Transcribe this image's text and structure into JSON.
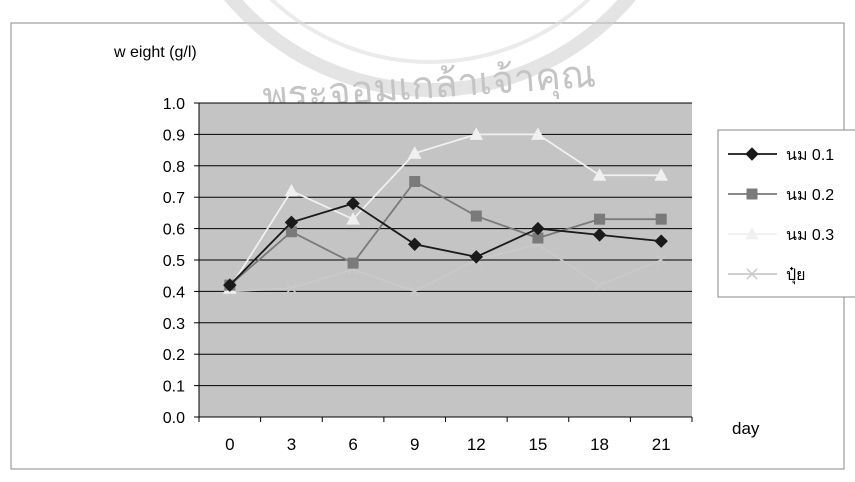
{
  "chart_data": {
    "type": "line",
    "title": "",
    "ylabel": "w eight (g/l)",
    "xlabel": "day",
    "categories": [
      "0",
      "3",
      "6",
      "9",
      "12",
      "15",
      "18",
      "21"
    ],
    "y_ticks": [
      "1.0",
      "0.9",
      "0.8",
      "0.7",
      "0.6",
      "0.5",
      "0.4",
      "0.3",
      "0.2",
      "0.1",
      "0.0"
    ],
    "ylim": [
      0,
      1.0
    ],
    "grid": true,
    "legend_position": "right",
    "series": [
      {
        "name": "นม 0.1",
        "values": [
          0.42,
          0.62,
          0.68,
          0.55,
          0.51,
          0.6,
          0.58,
          0.56
        ],
        "color": "#1a1a1a",
        "marker": "diamond"
      },
      {
        "name": "นม 0.2",
        "values": [
          0.42,
          0.59,
          0.49,
          0.75,
          0.64,
          0.57,
          0.63,
          0.63
        ],
        "color": "#7a7a7a",
        "marker": "square"
      },
      {
        "name": "นม 0.3",
        "values": [
          0.41,
          0.72,
          0.63,
          0.84,
          0.9,
          0.9,
          0.77,
          0.77
        ],
        "color": "#f0f0f0",
        "marker": "triangle"
      },
      {
        "name": "ปุ๋ย",
        "values": [
          0.4,
          0.41,
          0.47,
          0.4,
          0.5,
          0.55,
          0.42,
          0.5
        ],
        "color": "#c9c9c9",
        "marker": "x"
      }
    ]
  },
  "watermark": {
    "text": "พระจอมเกล้าเจ้าคุณ"
  }
}
